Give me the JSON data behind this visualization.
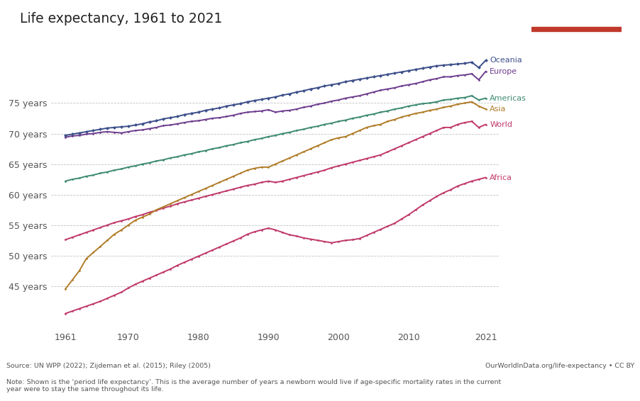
{
  "title": "Life expectancy, 1961 to 2021",
  "background_color": "#ffffff",
  "years": [
    1961,
    1962,
    1963,
    1964,
    1965,
    1966,
    1967,
    1968,
    1969,
    1970,
    1971,
    1972,
    1973,
    1974,
    1975,
    1976,
    1977,
    1978,
    1979,
    1980,
    1981,
    1982,
    1983,
    1984,
    1985,
    1986,
    1987,
    1988,
    1989,
    1990,
    1991,
    1992,
    1993,
    1994,
    1995,
    1996,
    1997,
    1998,
    1999,
    2000,
    2001,
    2002,
    2003,
    2004,
    2005,
    2006,
    2007,
    2008,
    2009,
    2010,
    2011,
    2012,
    2013,
    2014,
    2015,
    2016,
    2017,
    2018,
    2019,
    2020,
    2021
  ],
  "series": {
    "Oceania": {
      "color": "#3d4f8a",
      "values": [
        69.7,
        69.9,
        70.1,
        70.3,
        70.5,
        70.7,
        70.9,
        71.0,
        71.1,
        71.2,
        71.4,
        71.6,
        71.9,
        72.1,
        72.4,
        72.6,
        72.8,
        73.1,
        73.3,
        73.5,
        73.8,
        74.0,
        74.2,
        74.5,
        74.7,
        74.9,
        75.2,
        75.4,
        75.6,
        75.8,
        76.0,
        76.3,
        76.5,
        76.8,
        77.0,
        77.3,
        77.5,
        77.8,
        78.0,
        78.2,
        78.5,
        78.7,
        78.9,
        79.1,
        79.3,
        79.5,
        79.7,
        79.9,
        80.1,
        80.3,
        80.5,
        80.7,
        80.9,
        81.1,
        81.2,
        81.3,
        81.4,
        81.5,
        81.7,
        80.8,
        82.0
      ],
      "marker": "D",
      "markersize": 2.5,
      "linewidth": 1.4
    },
    "Europe": {
      "color": "#6e3e8e",
      "values": [
        69.4,
        69.6,
        69.7,
        69.9,
        70.0,
        70.2,
        70.3,
        70.2,
        70.1,
        70.3,
        70.5,
        70.6,
        70.8,
        71.0,
        71.3,
        71.4,
        71.6,
        71.8,
        72.0,
        72.1,
        72.3,
        72.5,
        72.6,
        72.8,
        73.0,
        73.3,
        73.5,
        73.6,
        73.7,
        73.9,
        73.5,
        73.7,
        73.8,
        74.0,
        74.3,
        74.5,
        74.8,
        75.0,
        75.3,
        75.5,
        75.8,
        76.0,
        76.2,
        76.5,
        76.8,
        77.1,
        77.3,
        77.5,
        77.8,
        78.0,
        78.2,
        78.5,
        78.8,
        79.0,
        79.3,
        79.3,
        79.5,
        79.6,
        79.8,
        78.8,
        80.2
      ],
      "marker": "o",
      "markersize": 2.0,
      "linewidth": 1.4
    },
    "Americas": {
      "color": "#3d8a72",
      "values": [
        62.2,
        62.5,
        62.7,
        63.0,
        63.2,
        63.5,
        63.7,
        64.0,
        64.2,
        64.5,
        64.7,
        65.0,
        65.2,
        65.5,
        65.7,
        66.0,
        66.2,
        66.5,
        66.7,
        67.0,
        67.2,
        67.5,
        67.7,
        68.0,
        68.2,
        68.5,
        68.7,
        69.0,
        69.2,
        69.5,
        69.7,
        70.0,
        70.2,
        70.5,
        70.7,
        71.0,
        71.2,
        71.5,
        71.7,
        72.0,
        72.2,
        72.5,
        72.7,
        73.0,
        73.2,
        73.5,
        73.7,
        74.0,
        74.2,
        74.5,
        74.7,
        74.9,
        75.0,
        75.2,
        75.5,
        75.6,
        75.8,
        75.9,
        76.2,
        75.5,
        75.8
      ],
      "marker": "o",
      "markersize": 2.0,
      "linewidth": 1.4
    },
    "Asia": {
      "color": "#b07d2a",
      "values": [
        44.5,
        46.0,
        47.5,
        49.5,
        50.5,
        51.5,
        52.5,
        53.5,
        54.2,
        55.0,
        55.8,
        56.3,
        56.8,
        57.5,
        58.0,
        58.5,
        59.0,
        59.5,
        60.0,
        60.5,
        61.0,
        61.5,
        62.0,
        62.5,
        63.0,
        63.5,
        64.0,
        64.3,
        64.5,
        64.5,
        65.0,
        65.5,
        66.0,
        66.5,
        67.0,
        67.5,
        68.0,
        68.5,
        69.0,
        69.3,
        69.5,
        70.0,
        70.5,
        71.0,
        71.3,
        71.5,
        72.0,
        72.3,
        72.7,
        73.0,
        73.3,
        73.5,
        73.8,
        74.0,
        74.3,
        74.5,
        74.8,
        75.0,
        75.2,
        74.5,
        74.0
      ],
      "marker": "o",
      "markersize": 2.0,
      "linewidth": 1.4
    },
    "World": {
      "color": "#c0396b",
      "values": [
        52.6,
        53.0,
        53.4,
        53.8,
        54.2,
        54.6,
        55.0,
        55.4,
        55.7,
        56.0,
        56.4,
        56.7,
        57.1,
        57.4,
        57.8,
        58.1,
        58.5,
        58.8,
        59.1,
        59.4,
        59.7,
        60.0,
        60.3,
        60.6,
        60.9,
        61.2,
        61.5,
        61.7,
        62.0,
        62.2,
        62.0,
        62.2,
        62.5,
        62.8,
        63.1,
        63.4,
        63.7,
        64.0,
        64.4,
        64.7,
        65.0,
        65.3,
        65.6,
        65.9,
        66.2,
        66.5,
        67.0,
        67.5,
        68.0,
        68.5,
        69.0,
        69.5,
        70.0,
        70.5,
        71.0,
        71.0,
        71.5,
        71.8,
        72.0,
        71.0,
        71.5
      ],
      "marker": "o",
      "markersize": 2.0,
      "linewidth": 1.4
    },
    "Africa": {
      "color": "#c0396b",
      "values": [
        40.5,
        40.9,
        41.3,
        41.7,
        42.1,
        42.5,
        43.0,
        43.5,
        44.0,
        44.7,
        45.3,
        45.8,
        46.3,
        46.8,
        47.3,
        47.8,
        48.4,
        48.9,
        49.4,
        49.9,
        50.4,
        50.9,
        51.4,
        51.9,
        52.4,
        52.9,
        53.5,
        53.9,
        54.2,
        54.5,
        54.2,
        53.8,
        53.4,
        53.2,
        52.9,
        52.7,
        52.5,
        52.3,
        52.1,
        52.3,
        52.5,
        52.6,
        52.8,
        53.3,
        53.8,
        54.3,
        54.8,
        55.3,
        56.0,
        56.7,
        57.5,
        58.3,
        59.0,
        59.7,
        60.3,
        60.8,
        61.4,
        61.8,
        62.2,
        62.5,
        62.8
      ],
      "marker": "o",
      "markersize": 2.0,
      "linewidth": 1.4
    }
  },
  "yticks": [
    45,
    50,
    55,
    60,
    65,
    70,
    75
  ],
  "ytick_labels": [
    "45 years",
    "50 years",
    "55 years",
    "60 years",
    "65 years",
    "70 years",
    "75 years"
  ],
  "xticks": [
    1961,
    1970,
    1980,
    1990,
    2000,
    2010,
    2021
  ],
  "ylim": [
    38,
    84
  ],
  "xlim_left": 1959,
  "xlim_right": 2023,
  "source_text": "Source: UN WPP (2022); Zijdeman et al. (2015); Riley (2005)",
  "note_text": "Note: Shown is the ‘period life expectancy’. This is the average number of years a newborn would live if age-specific mortality rates in the current\nyear were to stay the same throughout its life.",
  "owid_url": "OurWorldInData.org/life-expectancy • CC BY",
  "label_colors": {
    "Oceania": "#3d4f8a",
    "Europe": "#6e3e8e",
    "Americas": "#3d8a72",
    "Asia": "#b07d2a",
    "World": "#c0396b",
    "Africa": "#c0396b"
  },
  "logo_bg": "#1a3060",
  "logo_red": "#c0392b"
}
